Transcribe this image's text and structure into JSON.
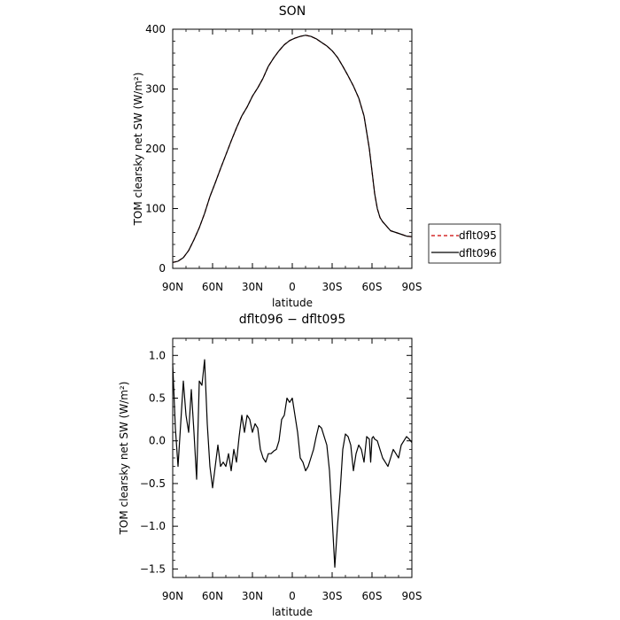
{
  "chart_data": [
    {
      "type": "line",
      "title": "SON",
      "xlabel": "latitude",
      "ylabel": "TOM clearsky net SW (W/m²)",
      "xlim": [
        90,
        -90
      ],
      "ylim": [
        0,
        400
      ],
      "x_ticks": [
        90,
        60,
        30,
        0,
        -30,
        -60,
        -90
      ],
      "x_tick_labels": [
        "90N",
        "60N",
        "30N",
        "0",
        "30S",
        "60S",
        "90S"
      ],
      "y_ticks": [
        0,
        100,
        200,
        300,
        400
      ],
      "y_tick_labels": [
        "0",
        "100",
        "200",
        "300",
        "400"
      ],
      "legend": {
        "placement": "right",
        "entries": [
          "dflt095",
          "dflt096"
        ]
      },
      "x": [
        90,
        86,
        82,
        78,
        74,
        70,
        66,
        62,
        58,
        54,
        50,
        46,
        42,
        38,
        34,
        30,
        26,
        22,
        18,
        14,
        10,
        6,
        2,
        -2,
        -6,
        -10,
        -14,
        -18,
        -22,
        -26,
        -30,
        -34,
        -38,
        -42,
        -46,
        -50,
        -54,
        -58,
        -62,
        -64,
        -66,
        -68,
        -70,
        -72,
        -74,
        -78,
        -82,
        -86,
        -90
      ],
      "series": [
        {
          "name": "dflt095",
          "color": "#cc0000",
          "dash": "dashed",
          "values": [
            10,
            12,
            18,
            30,
            48,
            68,
            92,
            120,
            143,
            167,
            190,
            213,
            235,
            255,
            270,
            288,
            302,
            318,
            338,
            352,
            364,
            374,
            381,
            385,
            388,
            390,
            388,
            384,
            378,
            372,
            364,
            353,
            338,
            322,
            305,
            285,
            255,
            200,
            125,
            100,
            85,
            78,
            73,
            68,
            63,
            60,
            57,
            54,
            53
          ]
        },
        {
          "name": "dflt096",
          "color": "#000000",
          "dash": "solid",
          "values": [
            10,
            12,
            18,
            30,
            48,
            68,
            92,
            120,
            143,
            167,
            190,
            213,
            235,
            255,
            270,
            288,
            302,
            318,
            338,
            352,
            364,
            374,
            381,
            385,
            388,
            390,
            388,
            384,
            378,
            372,
            364,
            353,
            338,
            322,
            305,
            285,
            255,
            200,
            125,
            100,
            85,
            78,
            73,
            68,
            63,
            60,
            57,
            54,
            53
          ]
        }
      ]
    },
    {
      "type": "line",
      "title": "dflt096 − dflt095",
      "xlabel": "latitude",
      "ylabel": "TOM clearsky net SW (W/m²)",
      "xlim": [
        90,
        -90
      ],
      "ylim": [
        -1.6,
        1.2
      ],
      "x_ticks": [
        90,
        60,
        30,
        0,
        -30,
        -60,
        -90
      ],
      "x_tick_labels": [
        "90N",
        "60N",
        "30N",
        "0",
        "30S",
        "60S",
        "90S"
      ],
      "y_ticks": [
        1.0,
        0.5,
        0.0,
        -0.5,
        -1.0,
        -1.5
      ],
      "y_tick_labels": [
        "1.0",
        "0.5",
        "0.0",
        "−0.5",
        "−1.0",
        "−1.5"
      ],
      "x": [
        90,
        88,
        86,
        84,
        82,
        80,
        78,
        76,
        74,
        72,
        70,
        68,
        66,
        64,
        62,
        60,
        58,
        56,
        54,
        52,
        50,
        48,
        46,
        44,
        42,
        40,
        38,
        36,
        34,
        32,
        30,
        28,
        26,
        24,
        22,
        20,
        18,
        16,
        14,
        12,
        10,
        8,
        6,
        4,
        2,
        0,
        -2,
        -4,
        -6,
        -8,
        -10,
        -12,
        -14,
        -16,
        -18,
        -20,
        -22,
        -24,
        -26,
        -28,
        -30,
        -32,
        -34,
        -36,
        -38,
        -40,
        -42,
        -44,
        -46,
        -48,
        -50,
        -52,
        -54,
        -56,
        -58,
        -59,
        -60,
        -61,
        -62,
        -64,
        -66,
        -68,
        -70,
        -72,
        -74,
        -76,
        -78,
        -80,
        -82,
        -84,
        -86,
        -88,
        -90
      ],
      "series": [
        {
          "name": "",
          "color": "#000000",
          "dash": "solid",
          "values": [
            0.9,
            0.15,
            -0.3,
            0.2,
            0.7,
            0.3,
            0.1,
            0.6,
            0.1,
            -0.45,
            0.7,
            0.65,
            0.95,
            0.2,
            -0.3,
            -0.55,
            -0.3,
            -0.05,
            -0.3,
            -0.25,
            -0.3,
            -0.15,
            -0.35,
            -0.1,
            -0.25,
            0.05,
            0.3,
            0.1,
            0.3,
            0.25,
            0.1,
            0.2,
            0.15,
            -0.1,
            -0.2,
            -0.25,
            -0.15,
            -0.15,
            -0.12,
            -0.1,
            0.0,
            0.25,
            0.3,
            0.5,
            0.45,
            0.5,
            0.3,
            0.1,
            -0.2,
            -0.25,
            -0.35,
            -0.3,
            -0.2,
            -0.1,
            0.05,
            0.18,
            0.15,
            0.05,
            -0.05,
            -0.35,
            -0.9,
            -1.48,
            -1.0,
            -0.6,
            -0.1,
            0.08,
            0.05,
            -0.05,
            -0.35,
            -0.15,
            -0.05,
            -0.1,
            -0.25,
            0.05,
            0.02,
            -0.25,
            0.03,
            0.05,
            0.02,
            0.0,
            -0.1,
            -0.2,
            -0.25,
            -0.3,
            -0.2,
            -0.1,
            -0.15,
            -0.2,
            -0.05,
            0.0,
            0.05,
            0.02,
            -0.02
          ]
        }
      ]
    }
  ]
}
